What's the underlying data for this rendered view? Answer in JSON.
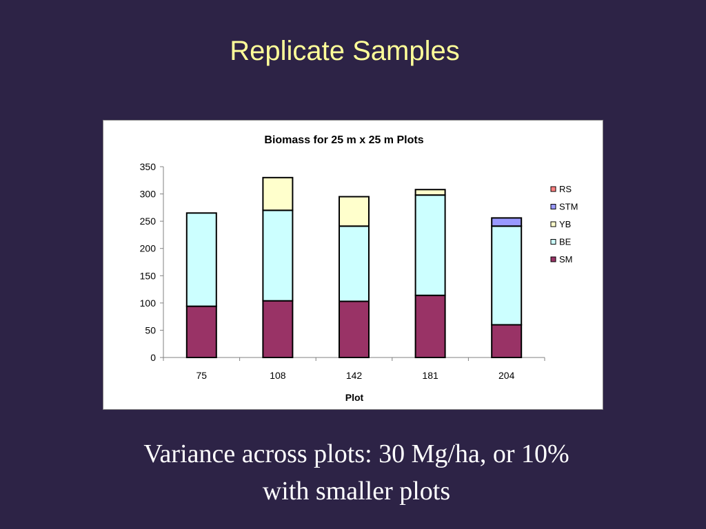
{
  "slide": {
    "title": "Replicate Samples",
    "caption_line1": "Variance across plots: 30 Mg/ha, or 10%",
    "caption_line2": "with smaller plots"
  },
  "colors": {
    "background": "#2d2346",
    "title": "#ffff99",
    "SM": "#993366",
    "BE": "#ccffff",
    "YB": "#ffffcc",
    "STM": "#9999ff",
    "RS": "#ff8080"
  },
  "chart_data": {
    "type": "bar",
    "stacked": true,
    "title": "Biomass for 25 m x 25 m Plots",
    "xlabel": "Plot",
    "ylabel": "",
    "categories": [
      "75",
      "108",
      "142",
      "181",
      "204"
    ],
    "ylim": [
      0,
      350
    ],
    "yticks": [
      0,
      50,
      100,
      150,
      200,
      250,
      300,
      350
    ],
    "legend_position": "right",
    "legend": [
      "RS",
      "STM",
      "YB",
      "BE",
      "SM"
    ],
    "series": [
      {
        "name": "SM",
        "values": [
          94,
          104,
          103,
          114,
          60
        ]
      },
      {
        "name": "BE",
        "values": [
          171,
          166,
          138,
          184,
          181
        ]
      },
      {
        "name": "YB",
        "values": [
          0,
          60,
          54,
          10,
          0
        ]
      },
      {
        "name": "STM",
        "values": [
          0,
          0,
          0,
          0,
          15
        ]
      },
      {
        "name": "RS",
        "values": [
          0,
          0,
          0,
          0,
          0
        ]
      }
    ]
  }
}
